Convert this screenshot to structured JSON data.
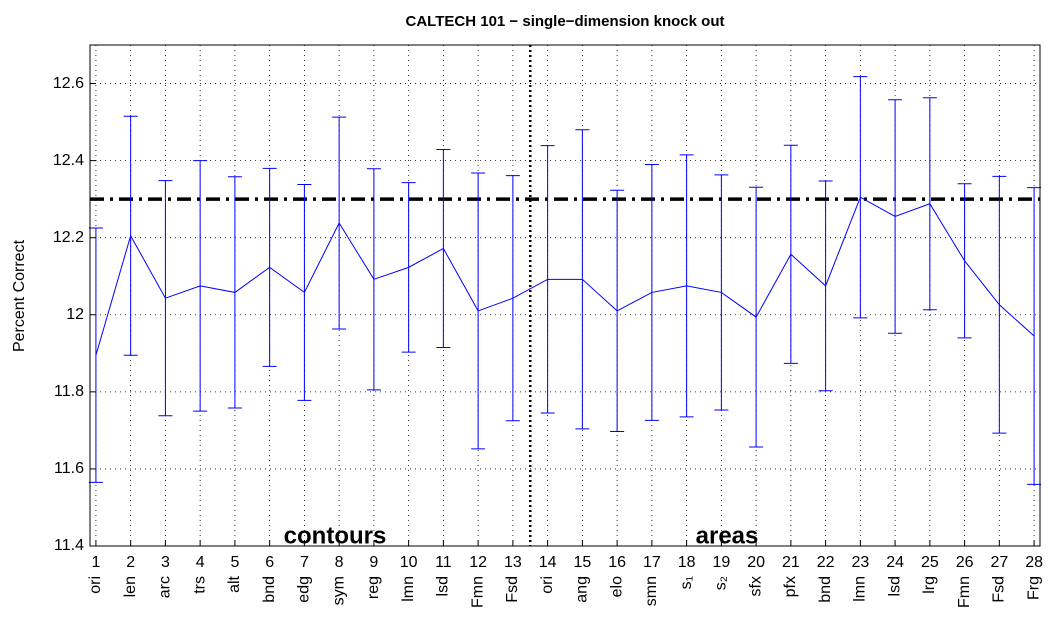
{
  "chart_data": {
    "type": "line",
    "title": "CALTECH 101 − single−dimension knock out",
    "ylabel": "Percent Correct",
    "x": [
      1,
      2,
      3,
      4,
      5,
      6,
      7,
      8,
      9,
      10,
      11,
      12,
      13,
      14,
      15,
      16,
      17,
      18,
      19,
      20,
      21,
      22,
      23,
      24,
      25,
      26,
      27,
      28
    ],
    "xtick_names": [
      "ori",
      "len",
      "arc",
      "trs",
      "alt",
      "bnd",
      "edg",
      "sym",
      "reg",
      "lmn",
      "lsd",
      "Fmn",
      "Fsd",
      "ori",
      "ang",
      "elo",
      "smn",
      "s₁",
      "s₂",
      "sfx",
      "pfx",
      "bnd",
      "lmn",
      "lsd",
      "lrg",
      "Fmn",
      "Fsd",
      "Frg"
    ],
    "series": [
      {
        "color": "#0000ff",
        "values": [
          11.895,
          12.205,
          12.043,
          12.075,
          12.058,
          12.123,
          12.058,
          12.238,
          12.092,
          12.123,
          12.172,
          12.01,
          12.043,
          12.092,
          12.092,
          12.01,
          12.058,
          12.075,
          12.058,
          11.994,
          12.157,
          12.075,
          12.305,
          12.255,
          12.288,
          12.14,
          12.026,
          11.945
        ],
        "errors": [
          0.33,
          0.31,
          0.305,
          0.325,
          0.3,
          0.257,
          0.28,
          0.275,
          0.287,
          0.22,
          0.257,
          0.358,
          0.318,
          0.347,
          0.388,
          0.313,
          0.332,
          0.34,
          0.305,
          0.337,
          0.283,
          0.272,
          0.313,
          0.303,
          0.275,
          0.2,
          0.333,
          0.385
        ]
      }
    ],
    "reference_line": 12.3,
    "divider_x": 13.5,
    "annotations": [
      "contours",
      "areas"
    ],
    "xlim": [
      0.83,
      28.17
    ],
    "xticks": [
      1,
      2,
      3,
      4,
      5,
      6,
      7,
      8,
      9,
      10,
      11,
      12,
      13,
      14,
      15,
      16,
      17,
      18,
      19,
      20,
      21,
      22,
      23,
      24,
      25,
      26,
      27,
      28
    ],
    "ylim": [
      11.4,
      12.7
    ],
    "yticks": [
      11.4,
      11.6,
      11.8,
      {
        "value": 12,
        "label": "12"
      },
      12.2,
      12.4,
      12.6
    ],
    "grid": true
  }
}
